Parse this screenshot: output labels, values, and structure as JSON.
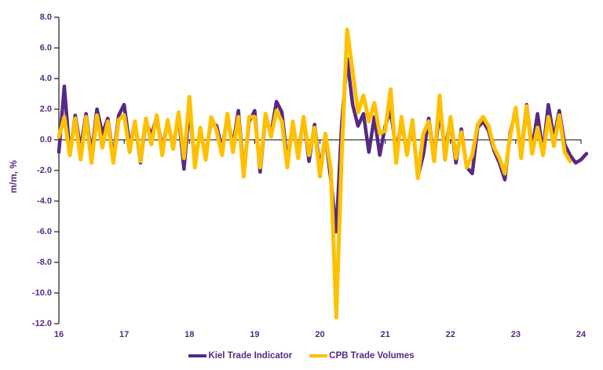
{
  "chart_data": {
    "type": "line",
    "title": "",
    "xlabel": "",
    "ylabel": "m/m, %",
    "ylim": [
      -12.0,
      8.0
    ],
    "y_tick_labels": [
      "8.0",
      "6.0",
      "4.0",
      "2.0",
      "0.0",
      "-2.0",
      "-4.0",
      "-6.0",
      "-8.0",
      "-10.0",
      "-12.0"
    ],
    "y_tick_values": [
      8,
      6,
      4,
      2,
      0,
      -2,
      -4,
      -6,
      -8,
      -10,
      -12
    ],
    "x_tick_labels": [
      "16",
      "17",
      "18",
      "19",
      "20",
      "21",
      "22",
      "23",
      "24"
    ],
    "x_frequency": "monthly",
    "grid": false,
    "legend_position": "bottom",
    "zero_line_color": "#000000",
    "axis_text_color": "#562984",
    "series": [
      {
        "name": "Kiel Trade Indicator",
        "color": "#562984",
        "stroke_width": 4.5,
        "start": "2016-01",
        "end": "2024-02",
        "values": [
          -0.8,
          3.5,
          -1.0,
          1.6,
          -0.6,
          1.7,
          -1.0,
          2.0,
          0.4,
          1.4,
          -1.2,
          1.6,
          2.3,
          -0.4,
          1.1,
          -1.5,
          1.2,
          0.3,
          1.5,
          -0.6,
          1.2,
          -0.4,
          1.6,
          -1.9,
          2.1,
          -1.6,
          0.6,
          -1.0,
          1.2,
          0.9,
          -0.6,
          1.5,
          -0.4,
          1.9,
          -2.1,
          1.2,
          1.9,
          -2.1,
          1.5,
          0.4,
          2.5,
          1.8,
          -1.4,
          1.0,
          -0.9,
          1.5,
          -1.4,
          1.0,
          -1.9,
          0.3,
          -2.6,
          -6.0,
          1.0,
          5.3,
          2.3,
          0.9,
          1.7,
          -0.8,
          1.5,
          -1.0,
          0.9,
          1.9,
          -0.7,
          1.2,
          -0.9,
          1.0,
          -2.4,
          -1.0,
          1.4,
          -1.2,
          1.8,
          -0.6,
          1.3,
          -1.5,
          0.7,
          -1.8,
          -2.2,
          0.8,
          1.2,
          0.6,
          -0.7,
          -1.5,
          -2.6,
          0.5,
          1.9,
          -0.9,
          2.3,
          -0.6,
          1.7,
          -0.8,
          2.3,
          0.1,
          1.9,
          -0.3,
          -1.0,
          -1.5,
          -1.3,
          -0.9
        ]
      },
      {
        "name": "CPB Trade Volumes",
        "color": "#FFC000",
        "stroke_width": 5,
        "start": "2016-01",
        "end": "2023-11",
        "values": [
          0.2,
          1.5,
          -1.0,
          1.4,
          -1.3,
          1.5,
          -1.5,
          1.6,
          -0.5,
          1.2,
          -1.5,
          1.3,
          1.6,
          -0.8,
          1.2,
          -1.4,
          1.4,
          -0.3,
          1.6,
          -1.0,
          1.3,
          -0.6,
          1.8,
          -1.2,
          2.8,
          -1.8,
          0.8,
          -1.3,
          1.5,
          0.6,
          -1.0,
          1.7,
          -0.8,
          1.5,
          -2.4,
          1.5,
          1.5,
          -1.8,
          1.7,
          0.2,
          1.9,
          1.2,
          -1.8,
          1.2,
          -1.2,
          1.5,
          -1.0,
          0.8,
          -2.4,
          0.4,
          -2.0,
          -11.6,
          -1.0,
          7.2,
          4.5,
          1.8,
          2.9,
          1.2,
          2.4,
          0.4,
          0.6,
          3.3,
          -1.5,
          1.5,
          -1.0,
          1.3,
          -2.5,
          0.4,
          1.2,
          -1.4,
          2.9,
          -1.3,
          1.5,
          -1.2,
          0.5,
          -1.8,
          -1.0,
          1.0,
          1.5,
          0.9,
          -0.5,
          -1.2,
          -2.2,
          0.3,
          2.1,
          -1.2,
          2.2,
          -0.9,
          0.8,
          -1.0,
          1.5,
          -0.4,
          1.6,
          -0.8,
          -1.4
        ]
      }
    ]
  }
}
